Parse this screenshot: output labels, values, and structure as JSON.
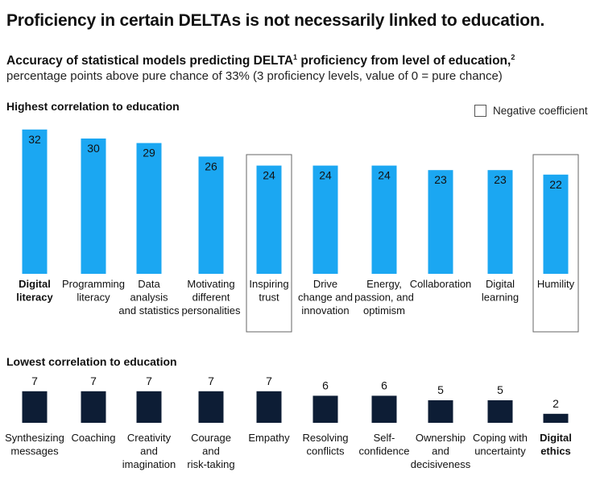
{
  "title": "Proficiency in certain DELTAs is not necessarily linked to education.",
  "subtitle": {
    "part1": "Accuracy of statistical models predicting DELTA",
    "sup1": "1",
    "part2": " proficiency from level of education,",
    "sup2": "2",
    "line2": "percentage points above pure chance of 33% (3 proficiency levels, value of 0 = pure chance)"
  },
  "legend": {
    "label": "Negative coefficient"
  },
  "colors": {
    "high_bar": "#1ba7f2",
    "low_bar": "#0d1d35",
    "outline": "#666666",
    "text": "#111111"
  },
  "chart_data": [
    {
      "type": "bar",
      "title": "Highest correlation to education",
      "ylim": [
        0,
        32
      ],
      "categories": [
        [
          "Digital",
          "literacy"
        ],
        [
          "Programming",
          "literacy"
        ],
        [
          "Data",
          "analysis",
          "and statistics"
        ],
        [
          "Motivating",
          "different",
          "personalities"
        ],
        [
          "Inspiring",
          "trust"
        ],
        [
          "Drive",
          "change and",
          "innovation"
        ],
        [
          "Energy,",
          "passion, and",
          "optimism"
        ],
        [
          "Collaboration"
        ],
        [
          "Digital",
          "learning"
        ],
        [
          "Humility"
        ]
      ],
      "values": [
        32,
        30,
        29,
        26,
        24,
        24,
        24,
        23,
        23,
        22
      ],
      "negative_coefficient": [
        false,
        false,
        false,
        false,
        true,
        false,
        false,
        false,
        false,
        true
      ],
      "bold": [
        true,
        false,
        false,
        false,
        false,
        false,
        false,
        false,
        false,
        false
      ]
    },
    {
      "type": "bar",
      "title": "Lowest correlation to education",
      "ylim": [
        0,
        32
      ],
      "categories": [
        [
          "Synthesizing",
          "messages"
        ],
        [
          "Coaching"
        ],
        [
          "Creativity",
          "and",
          "imagination"
        ],
        [
          "Courage",
          "and",
          "risk-taking"
        ],
        [
          "Empathy"
        ],
        [
          "Resolving",
          "conflicts"
        ],
        [
          "Self-",
          "confidence"
        ],
        [
          "Ownership",
          "and",
          "decisiveness"
        ],
        [
          "Coping with",
          "uncertainty"
        ],
        [
          "Digital",
          "ethics"
        ]
      ],
      "values": [
        7,
        7,
        7,
        7,
        7,
        6,
        6,
        5,
        5,
        2
      ],
      "negative_coefficient": [
        false,
        false,
        false,
        false,
        false,
        false,
        false,
        false,
        false,
        false
      ],
      "bold": [
        false,
        false,
        false,
        false,
        false,
        false,
        false,
        false,
        false,
        true
      ]
    }
  ]
}
